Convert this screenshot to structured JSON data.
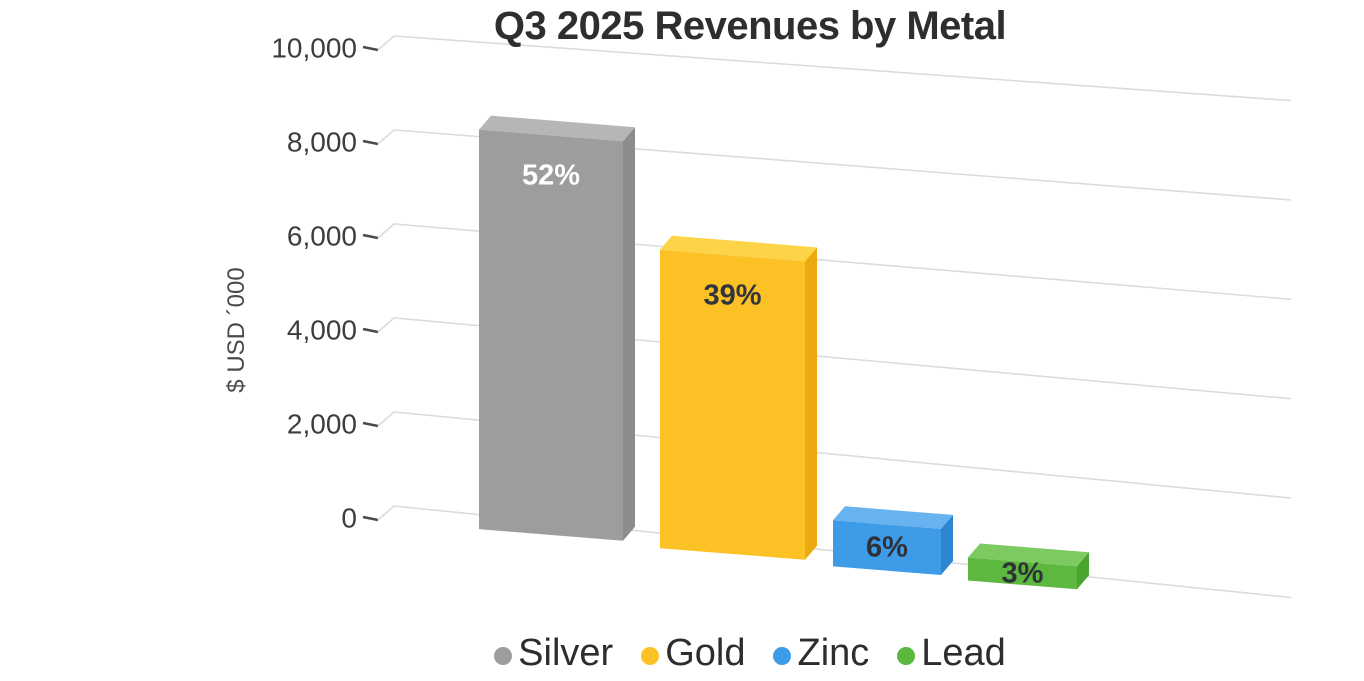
{
  "chart_data": {
    "type": "bar",
    "bar_style": "3d-column",
    "title": "Q3 2025 Revenues by Metal",
    "xlabel": "",
    "ylabel": "$ USD ´000",
    "ylim": [
      0,
      10000
    ],
    "grid": true,
    "legend_position": "bottom",
    "categories": [
      "Silver",
      "Gold",
      "Zinc",
      "Lead"
    ],
    "series": [
      {
        "name": "Silver",
        "value": 8500,
        "percent_label": "52%",
        "color": "#9d9d9d",
        "color_top": "#b6b6b6",
        "color_side": "#8c8c8c",
        "label_color": "#ffffff"
      },
      {
        "name": "Gold",
        "value": 6350,
        "percent_label": "39%",
        "color": "#fcc125",
        "color_top": "#fdd348",
        "color_side": "#edaa10",
        "label_color": "#31353e"
      },
      {
        "name": "Zinc",
        "value": 980,
        "percent_label": "6%",
        "color": "#3e9be7",
        "color_top": "#67b3f0",
        "color_side": "#2f86d0",
        "label_color": "#2e3238"
      },
      {
        "name": "Lead",
        "value": 490,
        "percent_label": "3%",
        "color": "#5cb83f",
        "color_top": "#7cca60",
        "color_side": "#48a52e",
        "label_color": "#2e3238"
      }
    ],
    "yticks": [
      {
        "label": "10,000",
        "value": 10000
      },
      {
        "label": "8,000",
        "value": 8000
      },
      {
        "label": "6,000",
        "value": 6000
      },
      {
        "label": "4,000",
        "value": 4000
      },
      {
        "label": "2,000",
        "value": 2000
      },
      {
        "label": "0",
        "value": 0
      }
    ]
  },
  "colors": {
    "background": "#ffffff",
    "grid_line": "#dcdcdc",
    "tick_mark": "#4b4b4b",
    "tick_text": "#3d3d3d",
    "title_text": "#2e2e2e",
    "legend_text": "#2d2d2d"
  }
}
